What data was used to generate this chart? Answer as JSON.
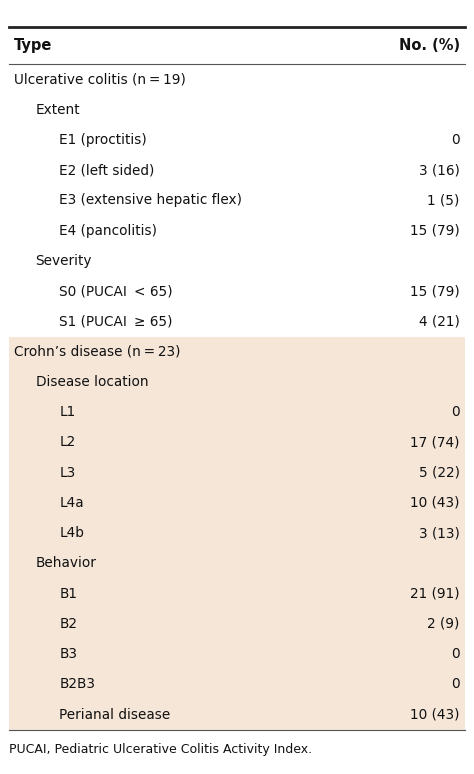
{
  "title_col1": "Type",
  "title_col2": "No. (%)",
  "header_bg": "#ffffff",
  "header_line_color": "#333333",
  "section1_bg": "#ffffff",
  "section2_bg": "#f9e8dc",
  "footer_text": "PUCAI, Pediatric Ulcerative Colitis Activity Index.",
  "rows": [
    {
      "label": "Ulcerative colitis (n = 19)",
      "value": "",
      "level": 0,
      "section": 1,
      "bold": false
    },
    {
      "label": "Extent",
      "value": "",
      "level": 1,
      "section": 1,
      "bold": false
    },
    {
      "label": "E1 (proctitis)",
      "value": "0",
      "level": 2,
      "section": 1,
      "bold": false
    },
    {
      "label": "E2 (left sided)",
      "value": "3 (16)",
      "level": 2,
      "section": 1,
      "bold": false
    },
    {
      "label": "E3 (extensive hepatic flex)",
      "value": "1 (5)",
      "level": 2,
      "section": 1,
      "bold": false
    },
    {
      "label": "E4 (pancolitis)",
      "value": "15 (79)",
      "level": 2,
      "section": 1,
      "bold": false
    },
    {
      "label": "Severity",
      "value": "",
      "level": 1,
      "section": 1,
      "bold": false
    },
    {
      "label": "S0 (PUCAI  < 65)",
      "value": "15 (79)",
      "level": 2,
      "section": 1,
      "bold": false
    },
    {
      "label": "S1 (PUCAI  ≥ 65)",
      "value": "4 (21)",
      "level": 2,
      "section": 1,
      "bold": false
    },
    {
      "label": "Crohn’s disease (n = 23)",
      "value": "",
      "level": 0,
      "section": 2,
      "bold": false
    },
    {
      "label": "Disease location",
      "value": "",
      "level": 1,
      "section": 2,
      "bold": false
    },
    {
      "label": "L1",
      "value": "0",
      "level": 2,
      "section": 2,
      "bold": false
    },
    {
      "label": "L2",
      "value": "17 (74)",
      "level": 2,
      "section": 2,
      "bold": false
    },
    {
      "label": "L3",
      "value": "5 (22)",
      "level": 2,
      "section": 2,
      "bold": false
    },
    {
      "label": "L4a",
      "value": "10 (43)",
      "level": 2,
      "section": 2,
      "bold": false
    },
    {
      "label": "L4b",
      "value": "3 (13)",
      "level": 2,
      "section": 2,
      "bold": false
    },
    {
      "label": "Behavior",
      "value": "",
      "level": 1,
      "section": 2,
      "bold": false
    },
    {
      "label": "B1",
      "value": "21 (91)",
      "level": 2,
      "section": 2,
      "bold": false
    },
    {
      "label": "B2",
      "value": "2 (9)",
      "level": 2,
      "section": 2,
      "bold": false
    },
    {
      "label": "B3",
      "value": "0",
      "level": 2,
      "section": 2,
      "bold": false
    },
    {
      "label": "B2B3",
      "value": "0",
      "level": 2,
      "section": 2,
      "bold": false
    },
    {
      "label": "Perianal disease",
      "value": "10 (43)",
      "level": 2,
      "section": 2,
      "bold": false
    }
  ],
  "indent_level0": 0.01,
  "indent_level1": 0.05,
  "indent_level2": 0.1,
  "font_size_header": 10.5,
  "font_size_row": 9.8,
  "font_size_footer": 9.0
}
